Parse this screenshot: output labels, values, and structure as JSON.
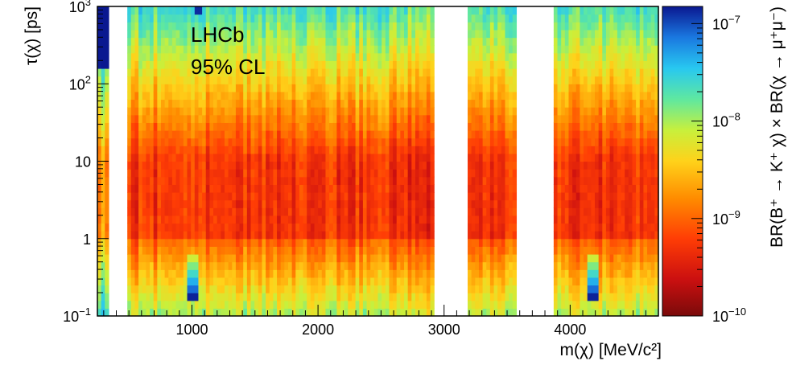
{
  "chart_data": {
    "type": "heatmap",
    "title": "",
    "xlabel": "m(χ) [MeV/c²]",
    "ylabel": "τ(χ) [ps]",
    "zlabel": "BR(B⁺ → K⁺ χ) × BR(χ → μ⁺μ⁻)",
    "xlim": [
      250,
      4700
    ],
    "ylim": [
      0.1,
      1000
    ],
    "y_scale": "log",
    "z_scale": "log",
    "zlim": [
      1e-10,
      1.5e-07
    ],
    "x_ticks": [
      {
        "value": 1000,
        "label": "1000"
      },
      {
        "value": 2000,
        "label": "2000"
      },
      {
        "value": 3000,
        "label": "3000"
      },
      {
        "value": 4000,
        "label": "4000"
      }
    ],
    "y_ticks": [
      {
        "value": 0.1,
        "base": "10",
        "exp": "−1"
      },
      {
        "value": 1,
        "base": "1",
        "exp": ""
      },
      {
        "value": 10,
        "base": "10",
        "exp": ""
      },
      {
        "value": 100,
        "base": "10",
        "exp": "2"
      },
      {
        "value": 1000,
        "base": "10",
        "exp": "3"
      }
    ],
    "z_ticks": [
      {
        "value": 1e-10,
        "base": "10",
        "exp": "−10"
      },
      {
        "value": 1e-09,
        "base": "10",
        "exp": "−9"
      },
      {
        "value": 1e-08,
        "base": "10",
        "exp": "−8"
      },
      {
        "value": 1e-07,
        "base": "10",
        "exp": "−7"
      }
    ],
    "excluded_mass_ranges": [
      [
        340,
        480
      ],
      [
        2930,
        3200
      ],
      [
        3570,
        3860
      ]
    ],
    "annotations": [
      "LHCb",
      "95% CL"
    ],
    "grid": false,
    "legend": "colorbar-right"
  }
}
